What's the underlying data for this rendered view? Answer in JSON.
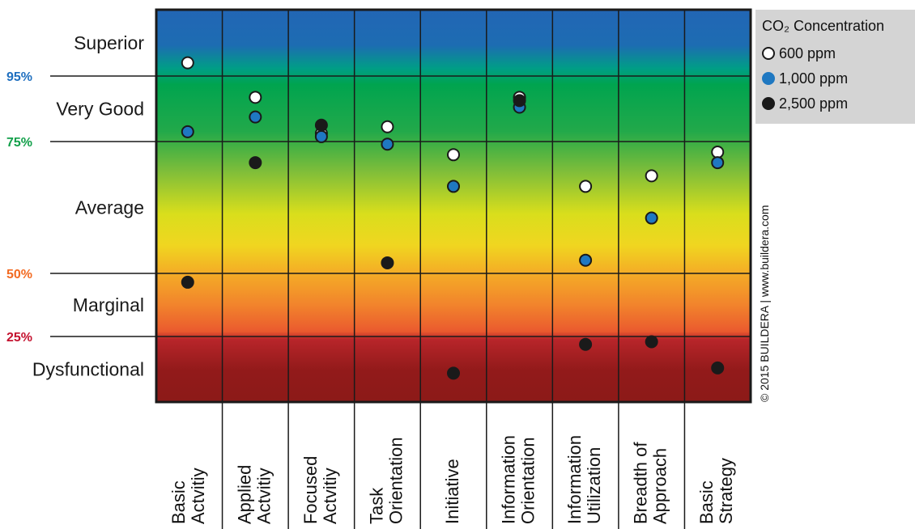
{
  "chart_data": {
    "type": "scatter",
    "title": "",
    "y_unit": "percentile",
    "ylim": [
      0,
      100
    ],
    "ylabel": "",
    "xlabel": "",
    "rating_zones": [
      {
        "label": "Superior",
        "min": 95,
        "max": 100
      },
      {
        "label": "Very Good",
        "min": 75,
        "max": 95
      },
      {
        "label": "Average",
        "min": 50,
        "max": 75
      },
      {
        "label": "Marginal",
        "min": 25,
        "max": 50
      },
      {
        "label": "Dysfunctional",
        "min": 0,
        "max": 25
      }
    ],
    "thresholds": [
      {
        "label": "95%",
        "value": 95,
        "color": "#1f6fbf"
      },
      {
        "label": "75%",
        "value": 75,
        "color": "#12a04a"
      },
      {
        "label": "50%",
        "value": 50,
        "color": "#f26a21"
      },
      {
        "label": "25%",
        "value": 25,
        "color": "#c4122f"
      }
    ],
    "categories": [
      [
        "Basic",
        "Actvitiy"
      ],
      [
        "Applied",
        "Actvitiy"
      ],
      [
        "Focused",
        "Actvitiy"
      ],
      [
        "Task",
        "Orientation"
      ],
      [
        "Initiative"
      ],
      [
        "Information",
        "Orientation"
      ],
      [
        "Information",
        "Utilization"
      ],
      [
        "Breadth of",
        "Approach"
      ],
      [
        "Basic",
        "Strategy"
      ]
    ],
    "legend": {
      "title": "CO₂ Concentration",
      "position": "top-right"
    },
    "series": [
      {
        "name": "600 ppm",
        "fill": "#ffffff",
        "values": [
          96.0,
          88.5,
          77.5,
          79.5,
          72.5,
          88.5,
          66.5,
          68.5,
          73.0
        ]
      },
      {
        "name": "1,000 ppm",
        "fill": "#1f78c1",
        "values": [
          78.0,
          82.5,
          76.5,
          74.5,
          66.5,
          85.5,
          52.5,
          60.5,
          71.0
        ]
      },
      {
        "name": "2,500 ppm",
        "fill": "#1a1a1a",
        "values": [
          46.5,
          71.0,
          80.0,
          52.0,
          11.0,
          87.5,
          22.0,
          23.0,
          13.0
        ]
      }
    ],
    "copyright": "© 2015 BUILDERA | www.buildera.com"
  }
}
